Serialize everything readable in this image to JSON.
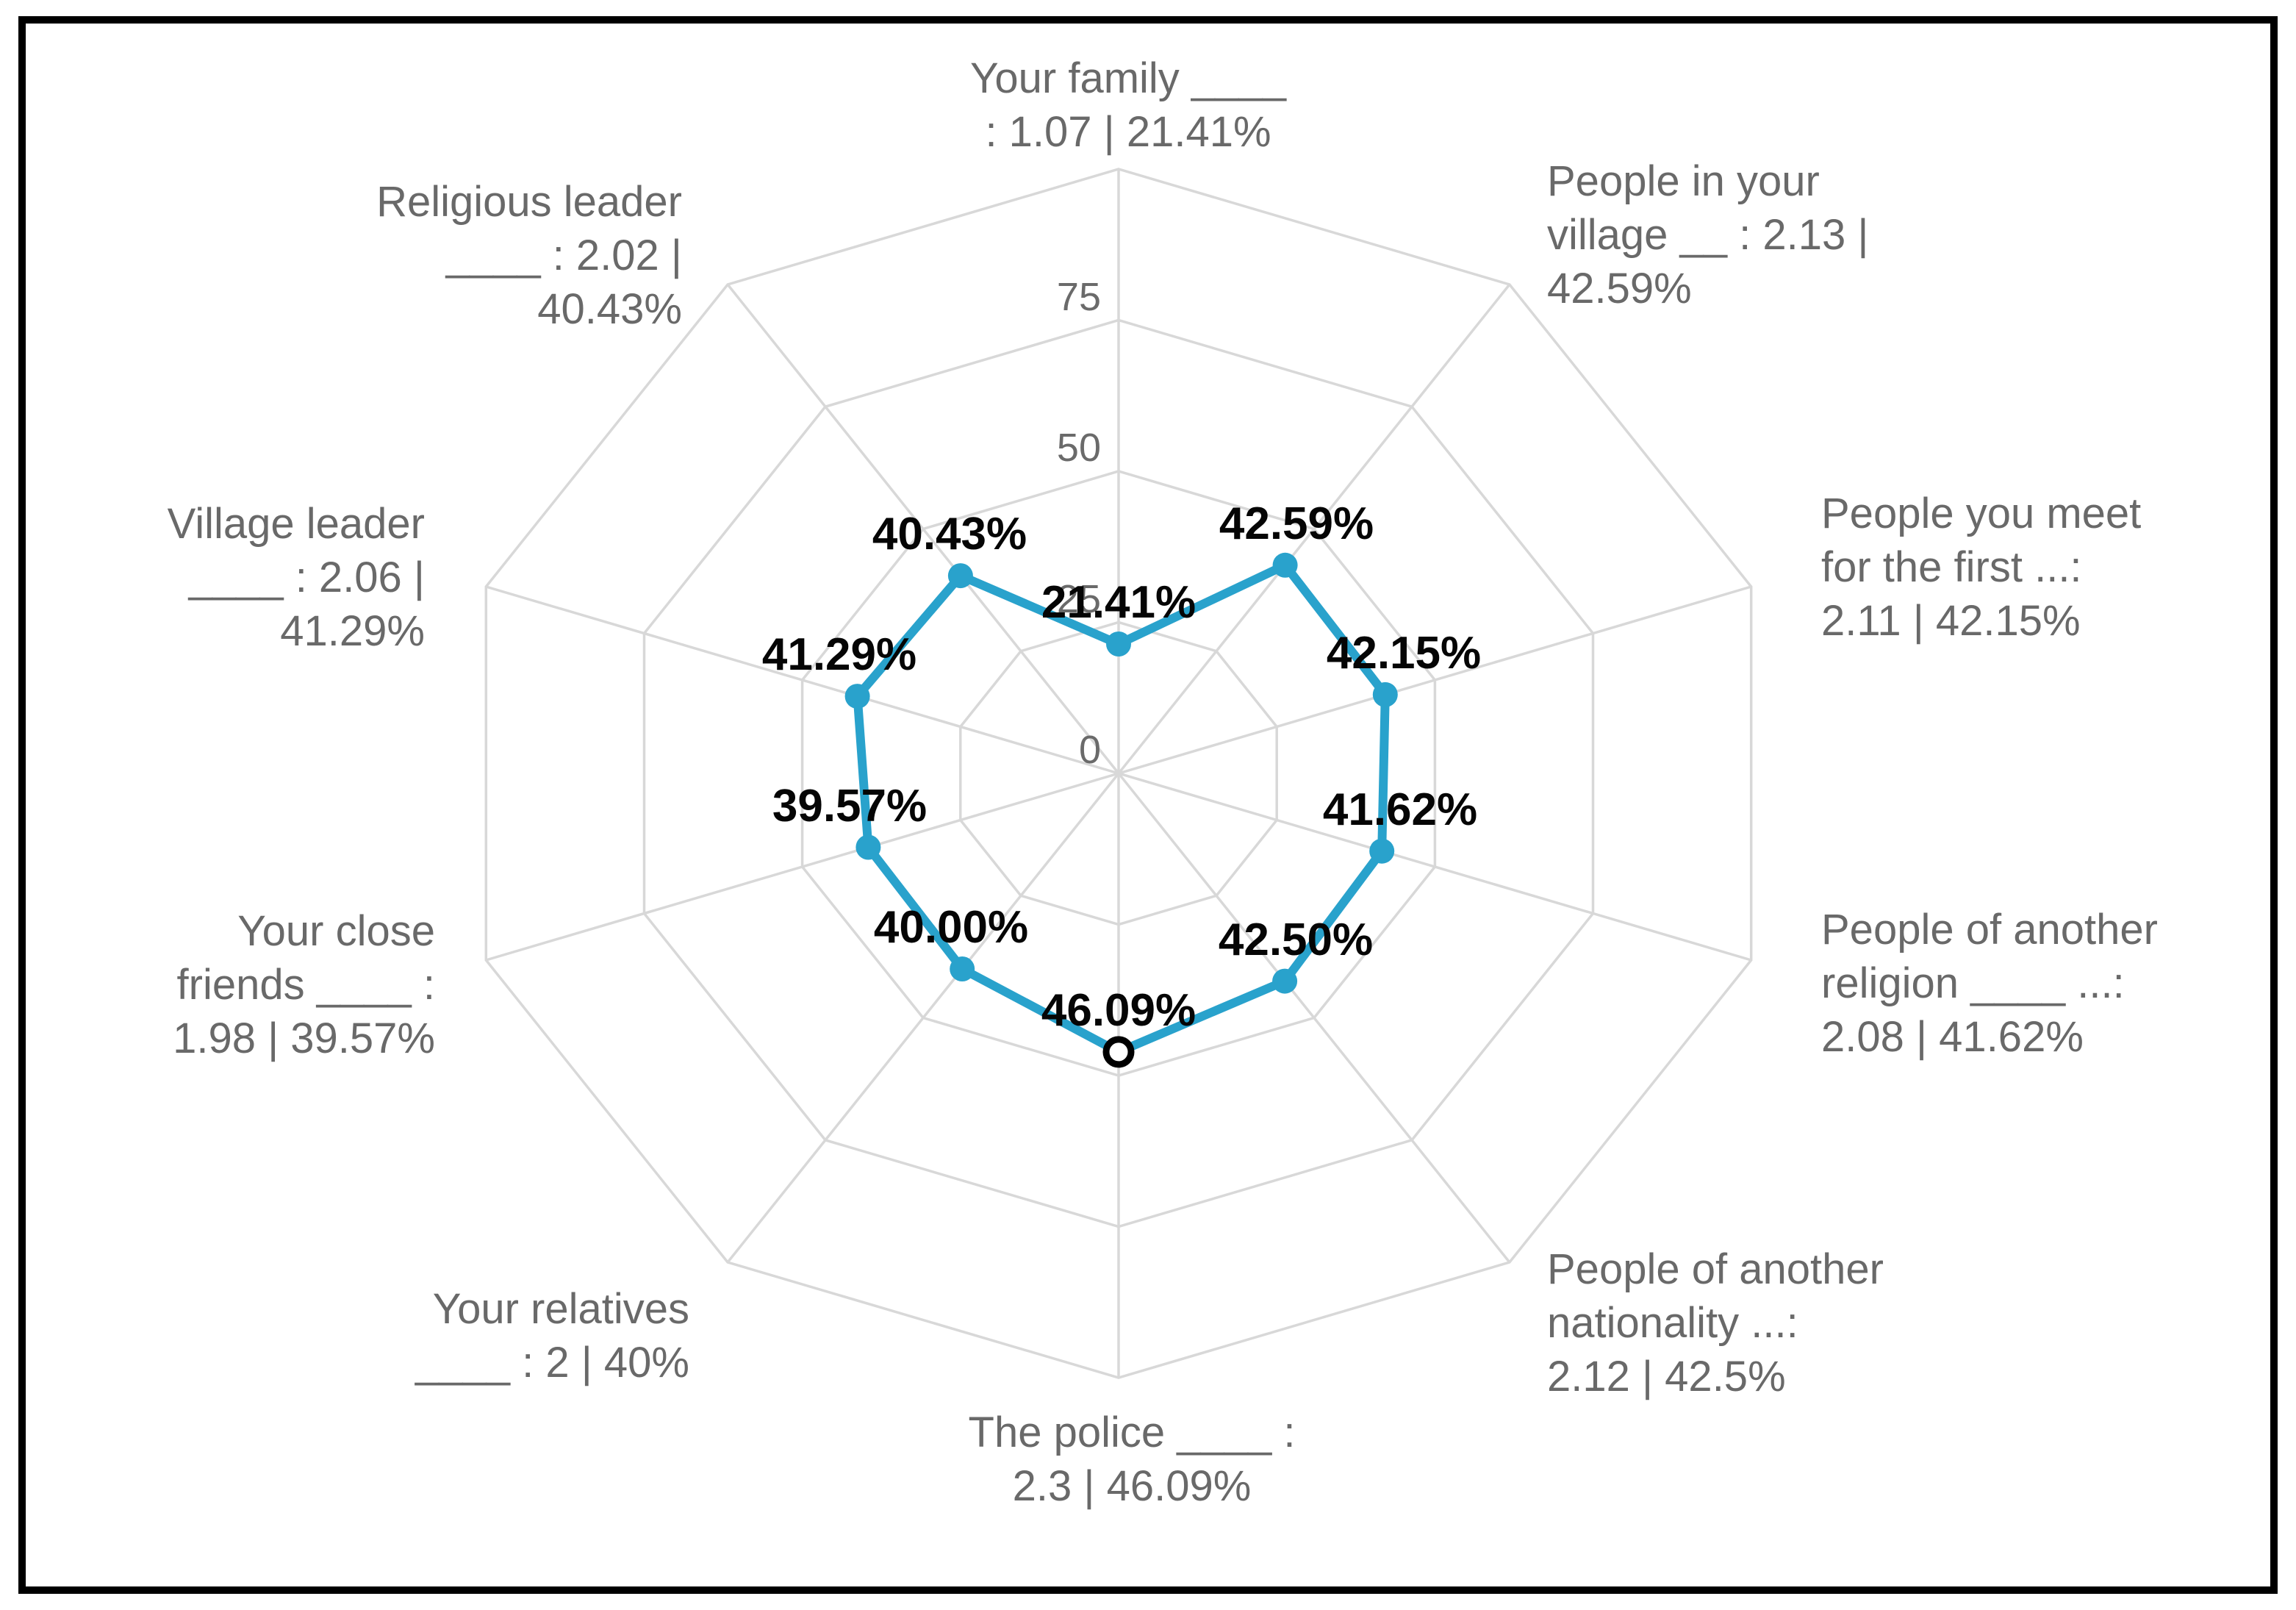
{
  "chart_data": {
    "type": "radar",
    "title": "",
    "axes": [
      {
        "label": "Your family ____\n: 1.07 | 21.41%",
        "category": "Your family",
        "mean": 1.07,
        "percent": 21.41,
        "point_label": "21.41%",
        "marker": "filled"
      },
      {
        "label": "People in your\nvillage __ : 2.13 |\n42.59%",
        "category": "People in your village",
        "mean": 2.13,
        "percent": 42.59,
        "point_label": "42.59%",
        "marker": "filled"
      },
      {
        "label": "People you meet\nfor the first ...:\n2.11 | 42.15%",
        "category": "People you meet for the first",
        "mean": 2.11,
        "percent": 42.15,
        "point_label": "42.15%",
        "marker": "filled"
      },
      {
        "label": "People of another\nreligion ____ ...:\n2.08 | 41.62%",
        "category": "People of another religion",
        "mean": 2.08,
        "percent": 41.62,
        "point_label": "41.62%",
        "marker": "filled"
      },
      {
        "label": "People of another\nnationality ...:\n2.12 | 42.5%",
        "category": "People of another nationality",
        "mean": 2.12,
        "percent": 42.5,
        "point_label": "42.50%",
        "marker": "filled"
      },
      {
        "label": "The police ____ :\n2.3 | 46.09%",
        "category": "The police",
        "mean": 2.3,
        "percent": 46.09,
        "point_label": "46.09%",
        "marker": "open"
      },
      {
        "label": "Your relatives\n____ : 2 | 40%",
        "category": "Your relatives",
        "mean": 2,
        "percent": 40,
        "point_label": "40.00%",
        "marker": "filled"
      },
      {
        "label": "Your close\nfriends ____ :\n1.98 | 39.57%",
        "category": "Your close friends",
        "mean": 1.98,
        "percent": 39.57,
        "point_label": "39.57%",
        "marker": "filled"
      },
      {
        "label": "Village leader\n____ : 2.06 |\n41.29%",
        "category": "Village leader",
        "mean": 2.06,
        "percent": 41.29,
        "point_label": "41.29%",
        "marker": "filled"
      },
      {
        "label": "Religious leader\n____ : 2.02 |\n40.43%",
        "category": "Religious leader",
        "mean": 2.02,
        "percent": 40.43,
        "point_label": "40.43%",
        "marker": "filled"
      }
    ],
    "r_axis": {
      "min": 0,
      "max": 100,
      "tick_values": [
        0,
        25,
        50,
        75
      ],
      "tick_labels": [
        "0",
        "25",
        "50",
        "75"
      ]
    },
    "grid": {
      "rings": [
        25,
        50,
        75,
        100
      ],
      "shape": "polygon",
      "spokes": 10
    },
    "legend": "none",
    "style": {
      "line_color": "#29A2CC",
      "marker_color": "#29A2CC",
      "open_marker_fill": "#FFFFFF",
      "open_marker_stroke": "#000000",
      "grid_color": "#D8D8D8",
      "axis_text_color": "#696969",
      "tick_text_color": "#6A6A6A",
      "point_label_color": "#050505",
      "area_fill": "none",
      "frame_border_color": "#000000"
    }
  }
}
